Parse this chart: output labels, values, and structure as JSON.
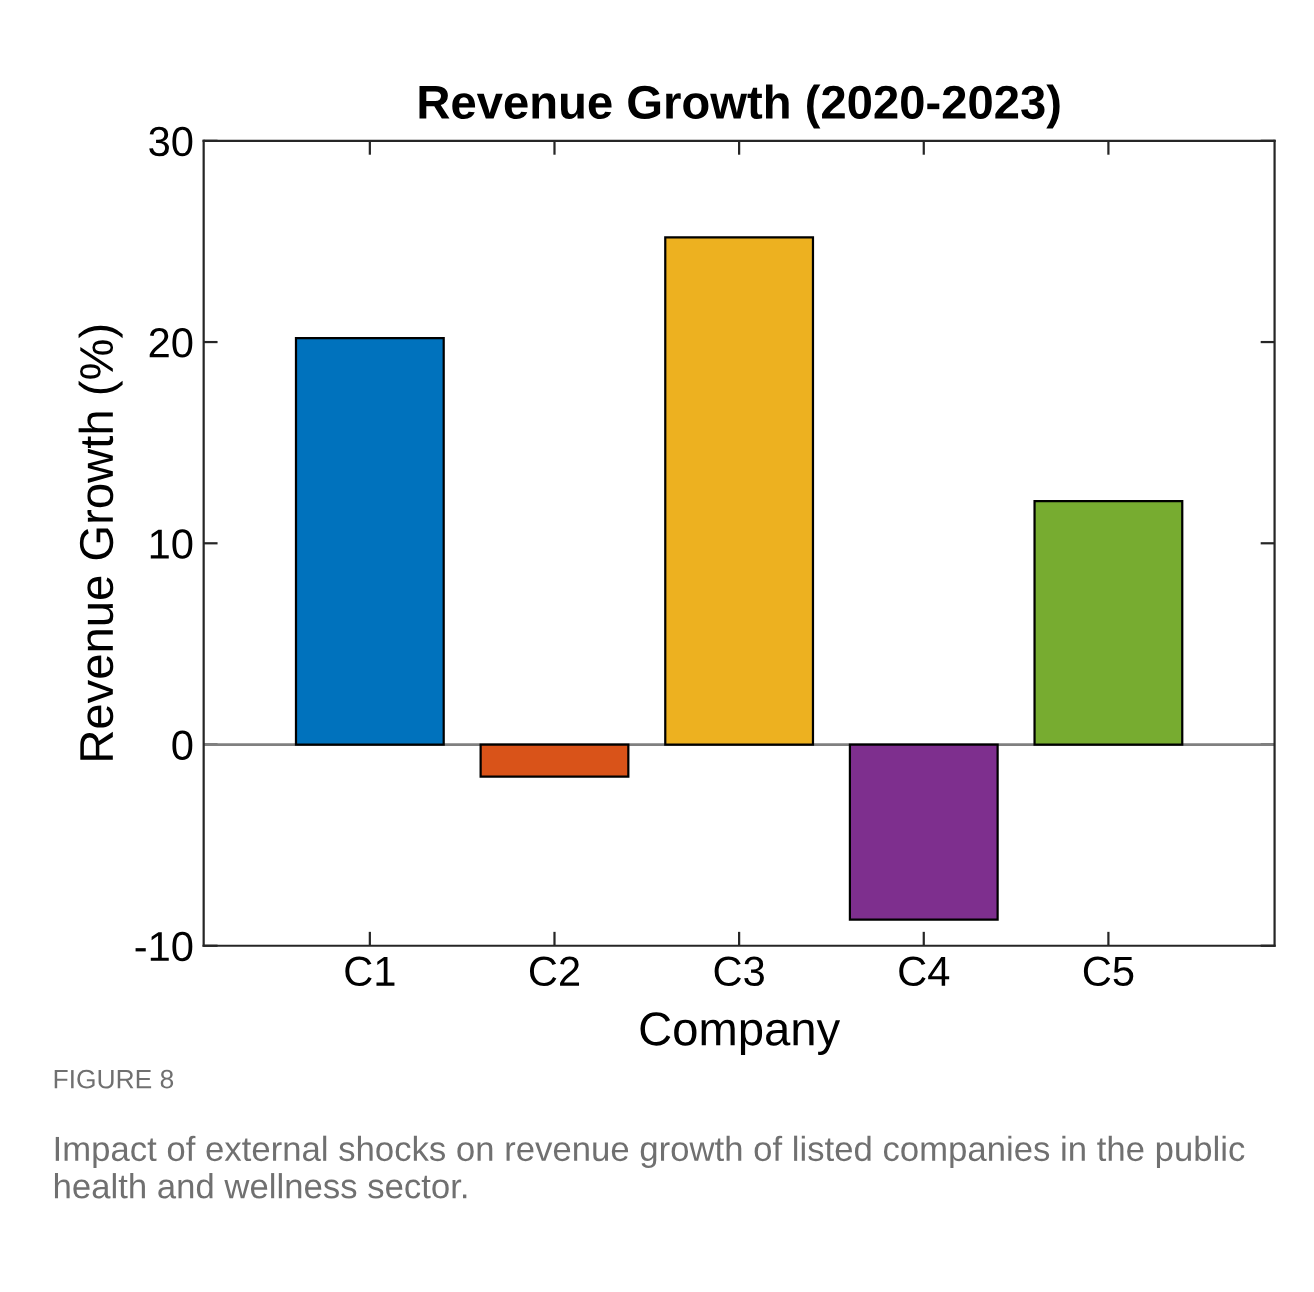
{
  "chart_data": {
    "type": "bar",
    "title": "Revenue Growth (2020-2023)",
    "xlabel": "Company",
    "ylabel": "Revenue Growth (%)",
    "categories": [
      "C1",
      "C2",
      "C3",
      "C4",
      "C5"
    ],
    "values": [
      20.2,
      -1.6,
      25.2,
      -8.7,
      12.1
    ],
    "colors": [
      "#0072bd",
      "#d95319",
      "#edb120",
      "#7e2f8e",
      "#77ac30"
    ],
    "ylim": [
      -10,
      30
    ],
    "yticks": [
      -10,
      0,
      10,
      20,
      30
    ],
    "ref_lines": [
      {
        "axis": "y",
        "value": 0,
        "color": "#808080"
      }
    ],
    "annotations": [
      "FIGURE 8",
      "Impact of external shocks on revenue growth of listed companies in the public health and wellness sector."
    ]
  }
}
